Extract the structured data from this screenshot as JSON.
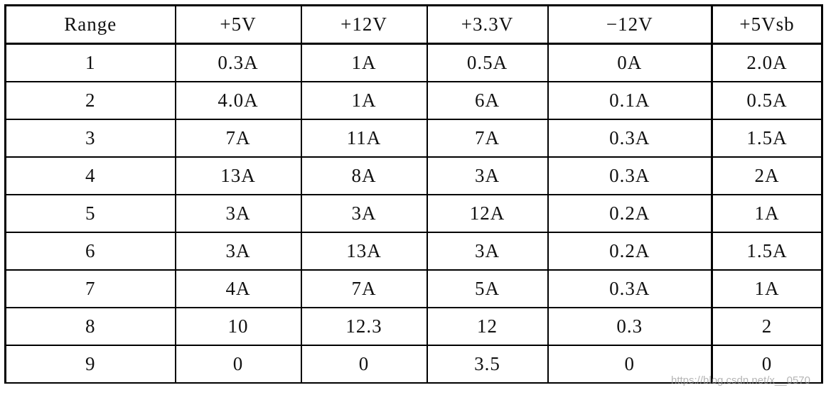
{
  "table": {
    "header": [
      "Range",
      "+5V",
      "+12V",
      "+3.3V",
      "−12V",
      "+5Vsb"
    ],
    "rows": [
      [
        "1",
        "0.3A",
        "1A",
        "0.5A",
        "0A",
        "2.0A"
      ],
      [
        "2",
        "4.0A",
        "1A",
        "6A",
        "0.1A",
        "0.5A"
      ],
      [
        "3",
        "7A",
        "11A",
        "7A",
        "0.3A",
        "1.5A"
      ],
      [
        "4",
        "13A",
        "8A",
        "3A",
        "0.3A",
        "2A"
      ],
      [
        "5",
        "3A",
        "3A",
        "12A",
        "0.2A",
        "1A"
      ],
      [
        "6",
        "3A",
        "13A",
        "3A",
        "0.2A",
        "1.5A"
      ],
      [
        "7",
        "4A",
        "7A",
        "5A",
        "0.3A",
        "1A"
      ],
      [
        "8",
        "10",
        "12.3",
        "12",
        "0.3",
        "2"
      ],
      [
        "9",
        "0",
        "0",
        "3.5",
        "0",
        "0"
      ]
    ]
  },
  "watermark": "https://blog.csdn.net/x__0570"
}
